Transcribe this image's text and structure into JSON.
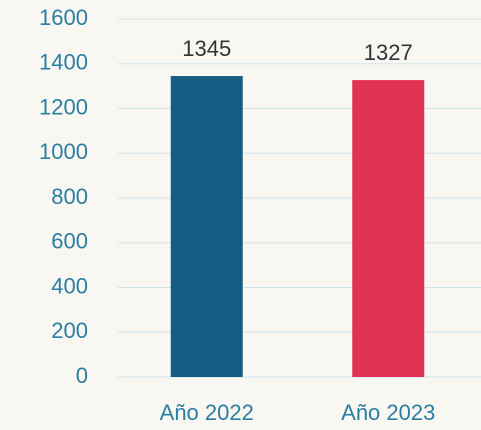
{
  "chart_data": {
    "type": "bar",
    "categories": [
      "Año 2022",
      "Año 2023"
    ],
    "values": [
      1345,
      1327
    ],
    "colors": [
      "#155d82",
      "#e03352"
    ],
    "ylim": [
      0,
      1600
    ],
    "yticks": [
      0,
      200,
      400,
      600,
      800,
      1000,
      1200,
      1400,
      1600
    ],
    "grid": true
  }
}
